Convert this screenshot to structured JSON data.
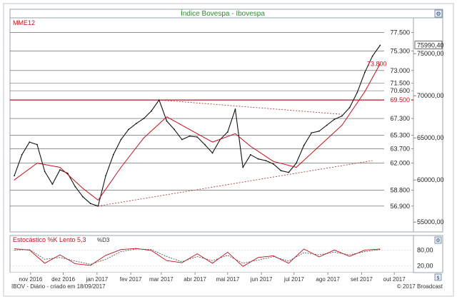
{
  "colors": {
    "price": "#111111",
    "ma": "#c0101a",
    "level_line": "#555555",
    "highlight_line": "#c0101a",
    "trend_line": "#b23b3b",
    "title": "#2e8b2e",
    "stoch_k": "#c0101a",
    "stoch_d": "#555555"
  },
  "header": {
    "title": "Índice Bovespa - Ibovespa",
    "ma_label": "MME12",
    "stoch_label": "Estocástico %K Lento 5,3",
    "stoch_d_label": "%D3"
  },
  "footer": {
    "left": "IBOV - Diário - criado em 18/09/2017",
    "right": "© 2017 Broadcast"
  },
  "icons": {
    "title_icon": "settings-icon",
    "stoch_icon": "settings-icon",
    "corner_icon": "dollar-icon"
  },
  "chart_data": [
    {
      "type": "line",
      "title": "Índice Bovespa - Ibovespa",
      "x_axis_type": "date",
      "x_range": [
        "2016-10-17",
        "2017-10-16"
      ],
      "y_range": [
        54000,
        79000
      ],
      "x_tick_labels": [
        "nov 2016",
        "dez 2016",
        "jan 2017",
        "fev 2017",
        "mar 2017",
        "abr 2017",
        "mai 2017",
        "jun 2017",
        "jul 2017",
        "ago 2017",
        "set 2017",
        "out 2017"
      ],
      "x_tick_dates": [
        "2016-11-01",
        "2016-12-01",
        "2017-01-01",
        "2017-02-01",
        "2017-03-01",
        "2017-04-01",
        "2017-05-01",
        "2017-06-01",
        "2017-07-01",
        "2017-08-01",
        "2017-09-01",
        "2017-10-01"
      ],
      "y_ticks": [
        55000,
        60000,
        65000,
        70000,
        75000
      ],
      "y_tick_labels": [
        "55000,00",
        "60000,00",
        "65000,00",
        "70000,00",
        "75000,00"
      ],
      "grid": false,
      "last_value_label": "75990,40",
      "series": [
        {
          "name": "IBOV",
          "x": [
            "2016-10-17",
            "2016-10-24",
            "2016-10-31",
            "2016-11-07",
            "2016-11-14",
            "2016-11-21",
            "2016-11-28",
            "2016-12-05",
            "2016-12-12",
            "2016-12-19",
            "2016-12-26",
            "2017-01-02",
            "2017-01-09",
            "2017-01-16",
            "2017-01-23",
            "2017-01-30",
            "2017-02-06",
            "2017-02-13",
            "2017-02-20",
            "2017-02-27",
            "2017-03-06",
            "2017-03-13",
            "2017-03-20",
            "2017-03-27",
            "2017-04-03",
            "2017-04-10",
            "2017-04-17",
            "2017-04-24",
            "2017-05-01",
            "2017-05-08",
            "2017-05-15",
            "2017-05-22",
            "2017-05-29",
            "2017-06-05",
            "2017-06-12",
            "2017-06-19",
            "2017-06-26",
            "2017-07-03",
            "2017-07-10",
            "2017-07-17",
            "2017-07-24",
            "2017-07-31",
            "2017-08-07",
            "2017-08-14",
            "2017-08-21",
            "2017-08-28",
            "2017-09-04",
            "2017-09-11",
            "2017-09-18"
          ],
          "y": [
            60500,
            63000,
            64500,
            64200,
            61000,
            59500,
            61200,
            60800,
            59200,
            58000,
            57200,
            56900,
            60500,
            63000,
            64800,
            66000,
            66700,
            67300,
            68200,
            69500,
            67000,
            66000,
            64800,
            65200,
            65100,
            64200,
            63200,
            64800,
            65700,
            68400,
            61500,
            63000,
            62500,
            62300,
            61900,
            61100,
            60900,
            62000,
            64100,
            65600,
            65800,
            66500,
            67200,
            67600,
            68600,
            70400,
            72800,
            74700,
            75990
          ]
        },
        {
          "name": "MME12",
          "x": [
            "2016-10-17",
            "2016-11-07",
            "2016-11-28",
            "2016-12-19",
            "2017-01-02",
            "2017-01-23",
            "2017-02-13",
            "2017-03-06",
            "2017-03-27",
            "2017-04-17",
            "2017-05-08",
            "2017-05-22",
            "2017-06-12",
            "2017-07-03",
            "2017-07-24",
            "2017-08-14",
            "2017-09-04",
            "2017-09-18"
          ],
          "y": [
            60000,
            62000,
            61500,
            59000,
            57600,
            61500,
            65000,
            67500,
            66000,
            64500,
            65500,
            64000,
            62200,
            61500,
            64000,
            66500,
            70500,
            73800
          ]
        }
      ],
      "annotations": {
        "horizontal_levels": [
          {
            "value": 77500,
            "label": "77.500",
            "highlight": false
          },
          {
            "value": 75300,
            "label": "75.300",
            "highlight": false
          },
          {
            "value": 73000,
            "label": "73.000",
            "highlight": false
          },
          {
            "value": 71500,
            "label": "71.500",
            "highlight": false
          },
          {
            "value": 70600,
            "label": "70.600",
            "highlight": false
          },
          {
            "value": 69500,
            "label": "69.500",
            "highlight": true
          },
          {
            "value": 67300,
            "label": "67.300",
            "highlight": false
          },
          {
            "value": 65300,
            "label": "65.300",
            "highlight": false
          },
          {
            "value": 63700,
            "label": "63.700",
            "highlight": false
          },
          {
            "value": 62000,
            "label": "62.000",
            "highlight": false
          },
          {
            "value": 58800,
            "label": "58.800",
            "highlight": false
          },
          {
            "value": 56900,
            "label": "56.900",
            "highlight": false
          }
        ],
        "ma_value_label": {
          "value": 73800,
          "label": "73.800"
        },
        "trend_lines": [
          {
            "x": [
              "2017-02-27",
              "2017-08-14"
            ],
            "y": [
              69500,
              67800
            ]
          },
          {
            "x": [
              "2017-01-02",
              "2017-09-11"
            ],
            "y": [
              56900,
              62300
            ]
          }
        ]
      }
    },
    {
      "type": "line",
      "title": "Estocástico %K Lento 5,3",
      "x_axis_type": "date",
      "x_range": [
        "2016-10-17",
        "2017-10-16"
      ],
      "y_range": [
        0,
        100
      ],
      "y_ticks": [
        20,
        80
      ],
      "y_tick_labels": [
        "20,00",
        "80,00"
      ],
      "grid": false,
      "series": [
        {
          "name": "%K Lento 5,3",
          "x": [
            "2016-10-17",
            "2016-10-31",
            "2016-11-14",
            "2016-11-28",
            "2016-12-12",
            "2016-12-26",
            "2017-01-09",
            "2017-01-23",
            "2017-02-06",
            "2017-02-20",
            "2017-03-06",
            "2017-03-20",
            "2017-04-03",
            "2017-04-17",
            "2017-05-01",
            "2017-05-15",
            "2017-05-29",
            "2017-06-12",
            "2017-06-26",
            "2017-07-10",
            "2017-07-24",
            "2017-08-07",
            "2017-08-21",
            "2017-09-04",
            "2017-09-18"
          ],
          "y": [
            85,
            80,
            30,
            62,
            28,
            22,
            60,
            82,
            86,
            78,
            40,
            32,
            66,
            30,
            72,
            18,
            52,
            58,
            30,
            84,
            54,
            80,
            56,
            80,
            84
          ]
        },
        {
          "name": "%D3",
          "x": [
            "2016-10-17",
            "2016-10-31",
            "2016-11-14",
            "2016-11-28",
            "2016-12-12",
            "2016-12-26",
            "2017-01-09",
            "2017-01-23",
            "2017-02-06",
            "2017-02-20",
            "2017-03-06",
            "2017-03-20",
            "2017-04-03",
            "2017-04-17",
            "2017-05-01",
            "2017-05-15",
            "2017-05-29",
            "2017-06-12",
            "2017-06-26",
            "2017-07-10",
            "2017-07-24",
            "2017-08-07",
            "2017-08-21",
            "2017-09-04",
            "2017-09-18"
          ],
          "y": [
            80,
            82,
            45,
            52,
            38,
            26,
            45,
            74,
            84,
            82,
            55,
            36,
            55,
            40,
            60,
            30,
            42,
            55,
            38,
            70,
            62,
            72,
            62,
            74,
            82
          ]
        }
      ]
    }
  ]
}
